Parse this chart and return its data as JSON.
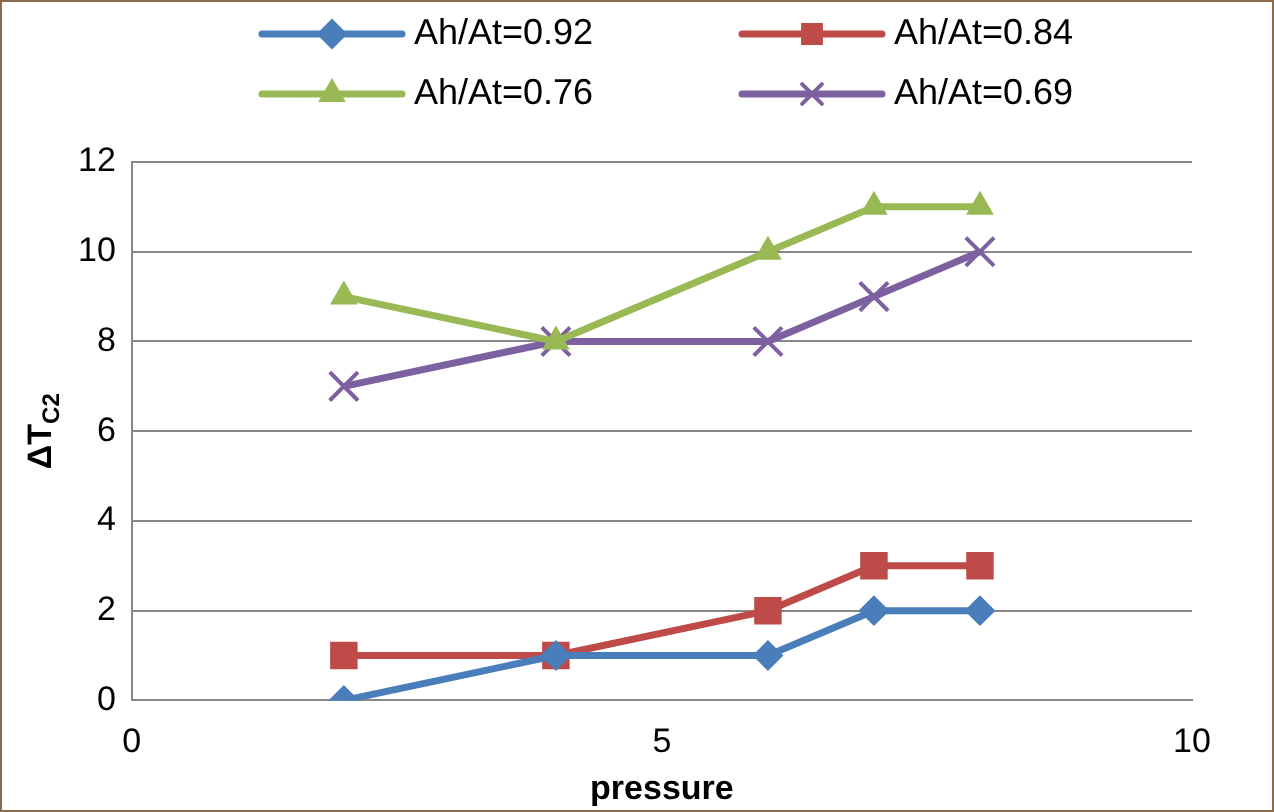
{
  "chart_data": {
    "type": "line",
    "xlabel": "pressure",
    "ylabel": "ΔT$_{C2}$",
    "xlim": [
      0,
      10
    ],
    "xticks": [
      0,
      5,
      10
    ],
    "ylim": [
      0,
      12
    ],
    "yticks": [
      0,
      2,
      4,
      6,
      8,
      10,
      12
    ],
    "grid": "y",
    "legend": "top",
    "line_style": "solid",
    "series": [
      {
        "name": "Ah/At=0.92",
        "color": "#4a7ebb",
        "marker": "diamond",
        "x": [
          2,
          4,
          6,
          7,
          8
        ],
        "values": [
          0,
          1,
          1,
          2,
          2
        ]
      },
      {
        "name": "Ah/At=0.84",
        "color": "#be4b48",
        "marker": "square",
        "x": [
          2,
          4,
          6,
          7,
          8
        ],
        "values": [
          1,
          1,
          2,
          3,
          3
        ]
      },
      {
        "name": "Ah/At=0.76",
        "color": "#98b954",
        "marker": "triangle",
        "x": [
          2,
          4,
          6,
          7,
          8
        ],
        "values": [
          9,
          8,
          10,
          11,
          11
        ]
      },
      {
        "name": "Ah/At=0.69",
        "color": "#7d60a0",
        "marker": "cross",
        "x": [
          2,
          4,
          6,
          7,
          8
        ],
        "values": [
          7,
          8,
          8,
          9,
          10
        ]
      }
    ]
  }
}
